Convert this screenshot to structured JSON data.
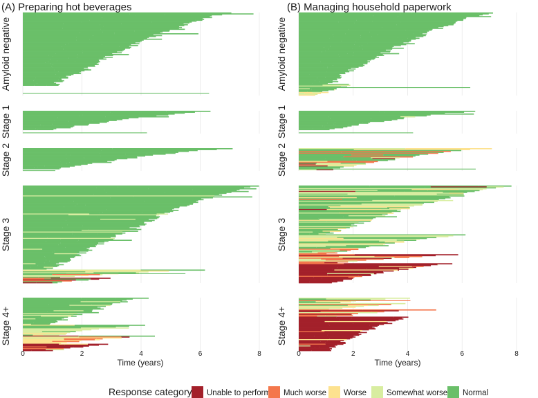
{
  "chart_data": {
    "type": "horizontal-stacked-swimmer",
    "xlabel": "Time (years)",
    "xlim": [
      0,
      8
    ],
    "xticks": [
      0,
      2,
      4,
      6,
      8
    ],
    "grid": true,
    "legend": {
      "title": "Response category",
      "placement": "bottom",
      "entries": [
        {
          "label": "Unable to perform",
          "color": "#a3202a"
        },
        {
          "label": "Much worse",
          "color": "#f4774c"
        },
        {
          "label": "Worse",
          "color": "#fde28f"
        },
        {
          "label": "Somewhat worse",
          "color": "#d8eda0"
        },
        {
          "label": "Normal",
          "color": "#6abf69"
        }
      ]
    },
    "strata": [
      "Amyloid negative",
      "Stage 1",
      "Stage 2",
      "Stage 3",
      "Stage 4+"
    ],
    "panels": [
      {
        "title": "(A) Preparing hot beverages",
        "facets": [
          {
            "stratum": "Amyloid negative",
            "blocks": [
              {
                "from": 0.0,
                "to": 0.88,
                "years": [
                  7.0,
                  1.0
                ],
                "composition": [
                  0,
                  0,
                  0,
                  0,
                  1
                ]
              }
            ],
            "segments": [
              {
                "row": 0.97,
                "start": 0,
                "end": 6.3,
                "category": 4
              }
            ]
          },
          {
            "stratum": "Stage 1",
            "blocks": [
              {
                "from": 0.0,
                "to": 0.82,
                "years": [
                  6.4,
                  0.9
                ],
                "composition": [
                  0,
                  0,
                  0,
                  0,
                  1
                ]
              }
            ],
            "segments": [
              {
                "row": 0.95,
                "start": 0,
                "end": 4.2,
                "category": 4
              }
            ]
          },
          {
            "stratum": "Stage 2",
            "blocks": [
              {
                "from": 0.0,
                "to": 0.92,
                "years": [
                  7.0,
                  0.9
                ],
                "composition": [
                  0,
                  0,
                  0,
                  0,
                  1
                ]
              }
            ],
            "segments": [
              {
                "row": 0.97,
                "start": 0,
                "end": 1.1,
                "category": 4
              }
            ]
          },
          {
            "stratum": "Stage 3",
            "blocks": [
              {
                "from": 0.0,
                "to": 0.86,
                "years": [
                  7.9,
                  0.9
                ],
                "composition": [
                  0,
                  0,
                  0,
                  0.05,
                  0.95
                ]
              },
              {
                "from": 0.86,
                "to": 0.94,
                "years": [
                  6.0,
                  0.9
                ],
                "composition": [
                  0,
                  0.05,
                  0.2,
                  0.45,
                  0.3
                ]
              },
              {
                "from": 0.94,
                "to": 1.0,
                "years": [
                  3.0,
                  0.9
                ],
                "composition": [
                  0.35,
                  0.25,
                  0.1,
                  0.2,
                  0.1
                ]
              }
            ],
            "segments": [
              {
                "row": 0.9,
                "start": 0,
                "end": 5.5,
                "category": 4
              }
            ]
          },
          {
            "stratum": "Stage 4+",
            "blocks": [
              {
                "from": 0.0,
                "to": 0.5,
                "years": [
                  4.1,
                  0.9
                ],
                "composition": [
                  0,
                  0,
                  0,
                  0.05,
                  0.95
                ]
              },
              {
                "from": 0.5,
                "to": 0.72,
                "years": [
                  4.0,
                  0.9
                ],
                "composition": [
                  0,
                  0.05,
                  0.2,
                  0.45,
                  0.3
                ]
              },
              {
                "from": 0.72,
                "to": 0.87,
                "years": [
                  4.4,
                  0.9
                ],
                "composition": [
                  0.2,
                  0.45,
                  0.15,
                  0.1,
                  0.1
                ]
              },
              {
                "from": 0.87,
                "to": 1.0,
                "years": [
                  2.8,
                  0.9
                ],
                "composition": [
                  0.7,
                  0.2,
                  0.05,
                  0.05,
                  0
                ]
              }
            ],
            "segments": []
          }
        ]
      },
      {
        "title": "(B) Managing household paperwork",
        "facets": [
          {
            "stratum": "Amyloid negative",
            "blocks": [
              {
                "from": 0.0,
                "to": 0.86,
                "years": [
                  7.1,
                  1.0
                ],
                "composition": [
                  0,
                  0,
                  0,
                  0,
                  1
                ]
              },
              {
                "from": 0.86,
                "to": 0.96,
                "years": [
                  2.0,
                  0.9
                ],
                "composition": [
                  0,
                  0,
                  0.1,
                  0.3,
                  0.6
                ]
              },
              {
                "from": 0.96,
                "to": 1.0,
                "years": [
                  1.0,
                  0.5
                ],
                "composition": [
                  0,
                  0,
                  0.6,
                  0.4,
                  0
                ]
              }
            ],
            "segments": [
              {
                "row": 0.9,
                "start": 0,
                "end": 6.3,
                "category": 4
              }
            ]
          },
          {
            "stratum": "Stage 1",
            "blocks": [
              {
                "from": 0.0,
                "to": 0.82,
                "years": [
                  6.4,
                  0.9
                ],
                "composition": [
                  0,
                  0,
                  0,
                  0.05,
                  0.95
                ]
              }
            ],
            "segments": [
              {
                "row": 0.95,
                "start": 0,
                "end": 4.2,
                "category": 4
              }
            ]
          },
          {
            "stratum": "Stage 2",
            "blocks": [
              {
                "from": 0.0,
                "to": 0.96,
                "years": [
                  7.0,
                  0.9
                ],
                "composition": [
                  0.08,
                  0.12,
                  0.1,
                  0.2,
                  0.5
                ]
              }
            ],
            "segments": [
              {
                "row": 0.9,
                "start": 0,
                "end": 6.5,
                "category": 4
              }
            ]
          },
          {
            "stratum": "Stage 3",
            "blocks": [
              {
                "from": 0.0,
                "to": 0.5,
                "years": [
                  7.8,
                  1.0
                ],
                "composition": [
                  0.02,
                  0.05,
                  0.1,
                  0.3,
                  0.53
                ]
              },
              {
                "from": 0.5,
                "to": 0.7,
                "years": [
                  6.2,
                  0.9
                ],
                "composition": [
                  0.05,
                  0.1,
                  0.15,
                  0.5,
                  0.2
                ]
              },
              {
                "from": 0.7,
                "to": 0.8,
                "years": [
                  6.0,
                  0.9
                ],
                "composition": [
                  0.25,
                  0.45,
                  0.1,
                  0.15,
                  0.05
                ]
              },
              {
                "from": 0.8,
                "to": 1.0,
                "years": [
                  5.6,
                  1.0
                ],
                "composition": [
                  0.8,
                  0.1,
                  0.05,
                  0.05,
                  0
                ]
              }
            ],
            "segments": []
          },
          {
            "stratum": "Stage 4+",
            "blocks": [
              {
                "from": 0.0,
                "to": 0.1,
                "years": [
                  4.0,
                  1.0
                ],
                "composition": [
                  0,
                  0.05,
                  0.1,
                  0.3,
                  0.55
                ]
              },
              {
                "from": 0.1,
                "to": 0.22,
                "years": [
                  4.0,
                  0.9
                ],
                "composition": [
                  0.05,
                  0.1,
                  0.2,
                  0.6,
                  0.05
                ]
              },
              {
                "from": 0.22,
                "to": 0.36,
                "years": [
                  4.4,
                  0.9
                ],
                "composition": [
                  0.2,
                  0.6,
                  0.1,
                  0.1,
                  0
                ]
              },
              {
                "from": 0.36,
                "to": 1.0,
                "years": [
                  4.0,
                  1.0
                ],
                "composition": [
                  0.9,
                  0.05,
                  0.03,
                  0.02,
                  0
                ]
              }
            ],
            "segments": [
              {
                "row": 0.05,
                "start": 0,
                "end": 4.1,
                "category": 1
              }
            ]
          }
        ]
      }
    ]
  }
}
